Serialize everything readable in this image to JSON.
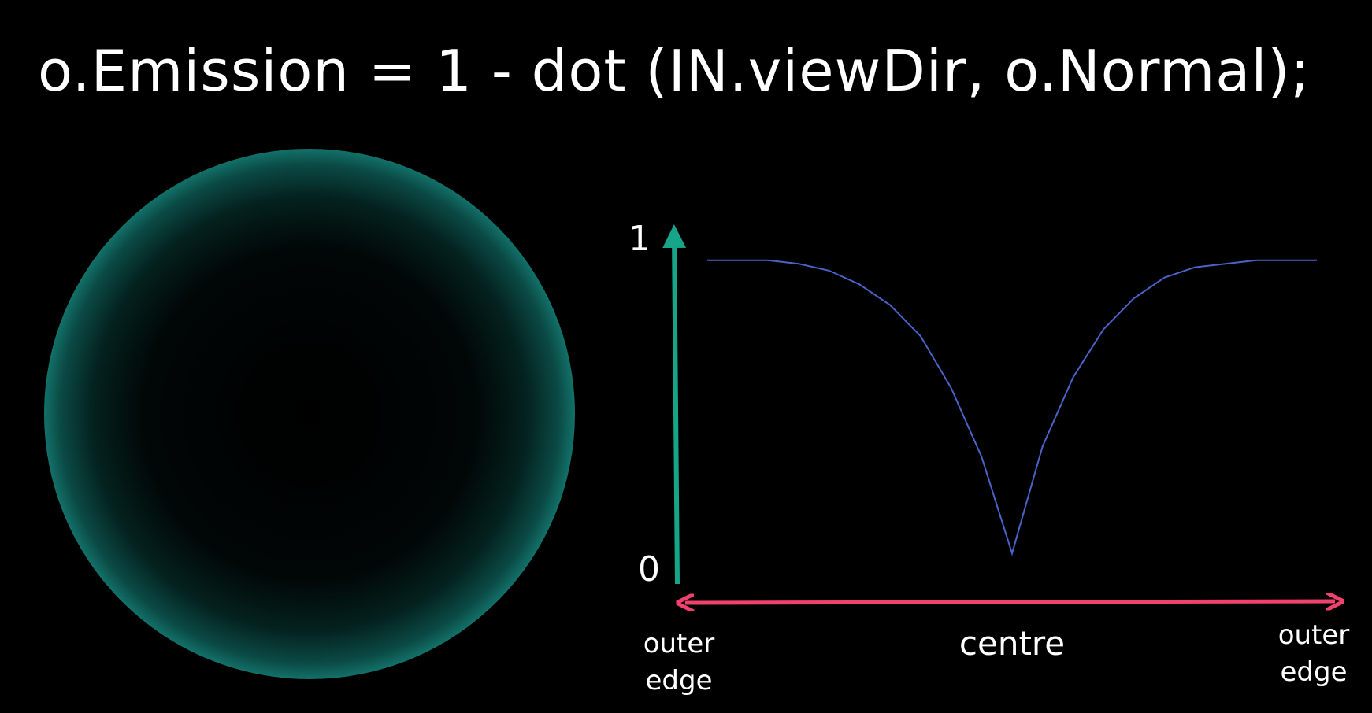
{
  "formula": "o.Emission =  1 - dot (IN.viewDir, o.Normal);",
  "colors": {
    "background": "#000000",
    "sphere_rim": "#1fa89c",
    "y_axis": "#17a58a",
    "x_axis": "#f1416e",
    "curve": "#4a63c8",
    "text": "#ffffff"
  },
  "axes": {
    "y_max_label": "1",
    "y_min_label": "0",
    "x_left_label_line1": "outer",
    "x_left_label_line2": "edge",
    "x_center_label": "centre",
    "x_right_label_line1": "outer",
    "x_right_label_line2": "edge"
  },
  "chart_data": {
    "type": "line",
    "xlabel": "",
    "ylabel": "",
    "ylim": [
      0,
      1
    ],
    "xlim": [
      -1,
      1
    ],
    "series": [
      {
        "x": [
          -1.0,
          -0.8,
          -0.7,
          -0.6,
          -0.5,
          -0.4,
          -0.3,
          -0.2,
          -0.1,
          0.0,
          0.1,
          0.2,
          0.3,
          0.4,
          0.5,
          0.6,
          0.7,
          0.8,
          1.0
        ],
        "values": [
          0.9,
          0.9,
          0.89,
          0.87,
          0.83,
          0.77,
          0.68,
          0.53,
          0.33,
          0.05,
          0.36,
          0.56,
          0.7,
          0.79,
          0.85,
          0.88,
          0.89,
          0.9,
          0.9
        ]
      }
    ]
  }
}
